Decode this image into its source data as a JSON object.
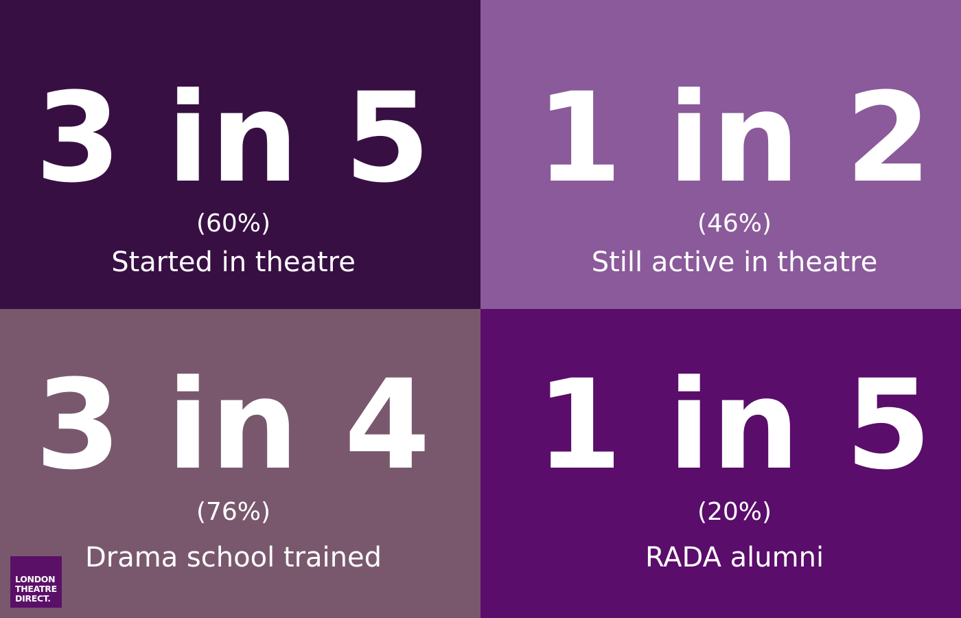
{
  "stats": [
    {
      "ratio": "3 in 5",
      "percent": "(60%)",
      "label": "Started in theatre",
      "background": "#380f43"
    },
    {
      "ratio": "1 in 2",
      "percent": "(46%)",
      "label": "Still active in theatre",
      "background": "#8a5a9a"
    },
    {
      "ratio": "3 in 4",
      "percent": "(76%)",
      "label": "Drama school trained",
      "background": "#79586e"
    },
    {
      "ratio": "1 in 5",
      "percent": "(20%)",
      "label": "RADA alumni",
      "background": "#5a0d6a"
    }
  ],
  "logo": {
    "line1": "LONDON",
    "line2": "THEATRE",
    "line3": "DIRECT.",
    "background": "#5b1068"
  }
}
